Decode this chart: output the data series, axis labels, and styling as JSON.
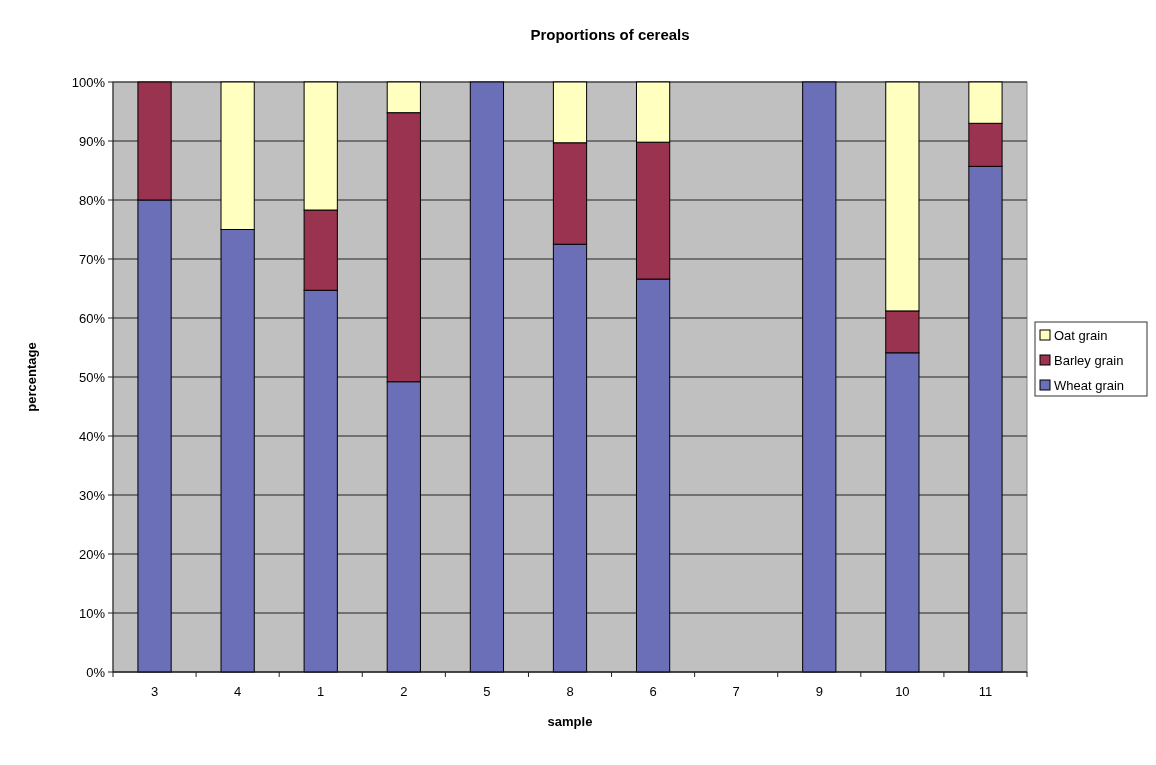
{
  "chart_data": {
    "type": "bar",
    "title": "Proportions of cereals",
    "xlabel": "sample",
    "ylabel": "percentage",
    "categories": [
      "3",
      "4",
      "1",
      "2",
      "5",
      "8",
      "6",
      "7",
      "9",
      "10",
      "11"
    ],
    "stacked": true,
    "series": [
      {
        "name": "Wheat grain",
        "color": "#6a6fb8",
        "values": [
          80,
          75,
          64.7,
          49.2,
          100,
          72.5,
          66.6,
          0,
          100,
          54.1,
          85.7
        ]
      },
      {
        "name": "Barley grain",
        "color": "#99334f",
        "values": [
          20,
          0,
          13.6,
          45.6,
          0,
          17.2,
          23.2,
          0,
          0,
          7.1,
          7.3
        ]
      },
      {
        "name": "Oat grain",
        "color": "#ffffc0",
        "values": [
          0,
          25,
          21.7,
          5.2,
          0,
          10.3,
          10.2,
          0,
          0,
          38.8,
          7.0
        ]
      }
    ],
    "ylim": [
      0,
      100
    ],
    "yticks": [
      {
        "value": 0,
        "label": "0%"
      },
      {
        "value": 10,
        "label": "10%"
      },
      {
        "value": 20,
        "label": "20%"
      },
      {
        "value": 30,
        "label": "30%"
      },
      {
        "value": 40,
        "label": "40%"
      },
      {
        "value": 50,
        "label": "50%"
      },
      {
        "value": 60,
        "label": "60%"
      },
      {
        "value": 70,
        "label": "70%"
      },
      {
        "value": 80,
        "label": "80%"
      },
      {
        "value": 90,
        "label": "90%"
      },
      {
        "value": 100,
        "label": "100%"
      }
    ],
    "grid": "y",
    "legend": "right"
  }
}
